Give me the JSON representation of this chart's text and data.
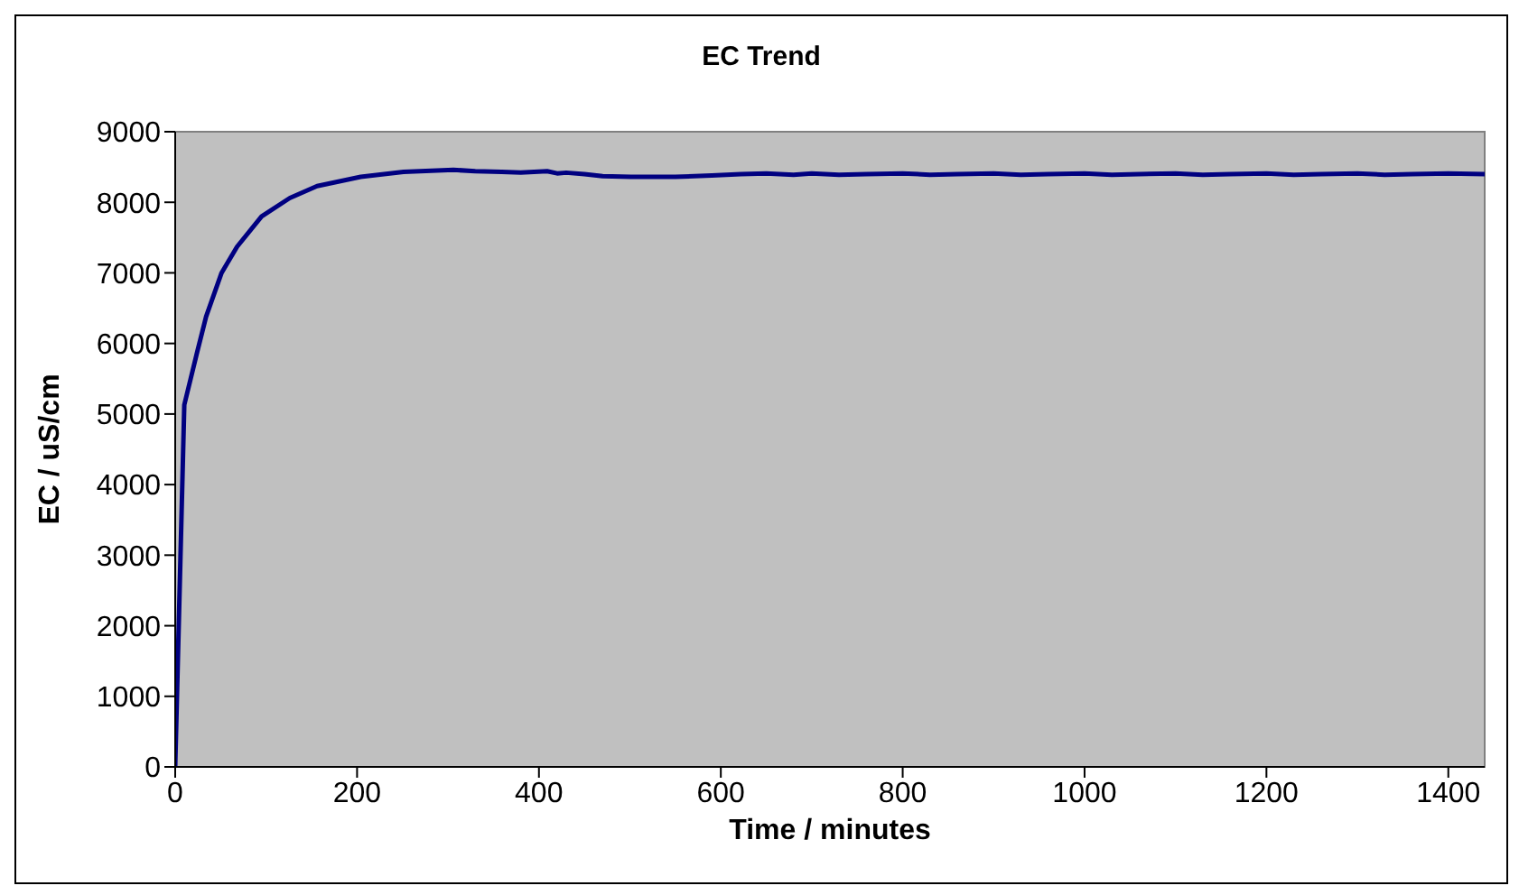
{
  "chart_data": {
    "type": "line",
    "title": "EC Trend",
    "xlabel": "Time / minutes",
    "ylabel": "EC / uS/cm",
    "xlim": [
      0,
      1440
    ],
    "xticks": [
      0,
      200,
      400,
      600,
      800,
      1000,
      1200,
      1400
    ],
    "ylim": [
      0,
      9000
    ],
    "yticks": [
      0,
      1000,
      2000,
      3000,
      4000,
      5000,
      6000,
      7000,
      8000,
      9000
    ],
    "legend": false,
    "marker": "none",
    "line_style": "solid",
    "series": [
      {
        "color": "#000080",
        "x": [
          0,
          10,
          24,
          34,
          51,
          68,
          95,
          126,
          156,
          204,
          251,
          306,
          330,
          359,
          380,
          409,
          420,
          430,
          450,
          470,
          501,
          550,
          590,
          622,
          650,
          680,
          700,
          730,
          760,
          800,
          830,
          860,
          900,
          930,
          960,
          1000,
          1030,
          1060,
          1100,
          1130,
          1160,
          1200,
          1230,
          1260,
          1300,
          1330,
          1360,
          1400,
          1440
        ],
        "values": [
          0,
          5130,
          5870,
          6380,
          7000,
          7370,
          7800,
          8060,
          8230,
          8360,
          8430,
          8460,
          8440,
          8430,
          8420,
          8440,
          8410,
          8420,
          8400,
          8370,
          8360,
          8360,
          8380,
          8400,
          8410,
          8390,
          8410,
          8390,
          8400,
          8410,
          8390,
          8400,
          8410,
          8390,
          8400,
          8410,
          8390,
          8400,
          8410,
          8390,
          8400,
          8410,
          8390,
          8400,
          8410,
          8390,
          8400,
          8410,
          8400
        ]
      }
    ]
  }
}
